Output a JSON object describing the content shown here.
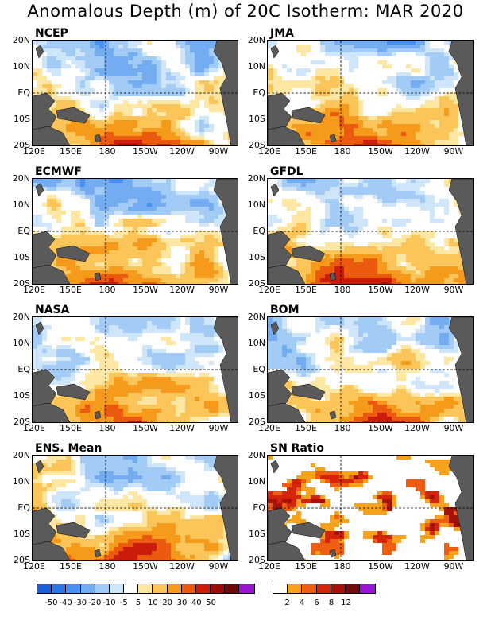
{
  "title": "Anomalous Depth (m) of 20C Isotherm: MAR 2020",
  "panels": [
    {
      "name": "NCEP"
    },
    {
      "name": "JMA"
    },
    {
      "name": "ECMWF"
    },
    {
      "name": "GFDL"
    },
    {
      "name": "NASA"
    },
    {
      "name": "BOM"
    },
    {
      "name": "ENS. Mean"
    },
    {
      "name": "SN Ratio"
    }
  ],
  "axes": {
    "lat_labels": [
      "20N",
      "10N",
      "EQ",
      "10S",
      "20S"
    ],
    "lon_labels": [
      "120E",
      "150E",
      "180",
      "150W",
      "120W",
      "90W"
    ]
  },
  "legend_anomaly": {
    "colors": [
      "#1a5fd8",
      "#2d76e6",
      "#4a90ee",
      "#74acf2",
      "#a2cbf6",
      "#cfe6fa",
      "#ffffff",
      "#fde7a3",
      "#fbc559",
      "#f59a1a",
      "#ec5a10",
      "#cc1d0a",
      "#9b0e08",
      "#6c0a0a",
      "#9a14d4"
    ],
    "labels": [
      "-50",
      "-40",
      "-30",
      "-20",
      "-10",
      "-5",
      "5",
      "10",
      "20",
      "30",
      "40",
      "50"
    ]
  },
  "legend_sn": {
    "colors": [
      "#ffffff",
      "#f7a21c",
      "#ee5e12",
      "#d4240c",
      "#a4120a",
      "#720c0c",
      "#9a14d4"
    ],
    "labels": [
      "2",
      "4",
      "6",
      "8",
      "12"
    ]
  },
  "colors": {
    "land": "#5a5a5a",
    "dashed_grid": "#000000"
  }
}
